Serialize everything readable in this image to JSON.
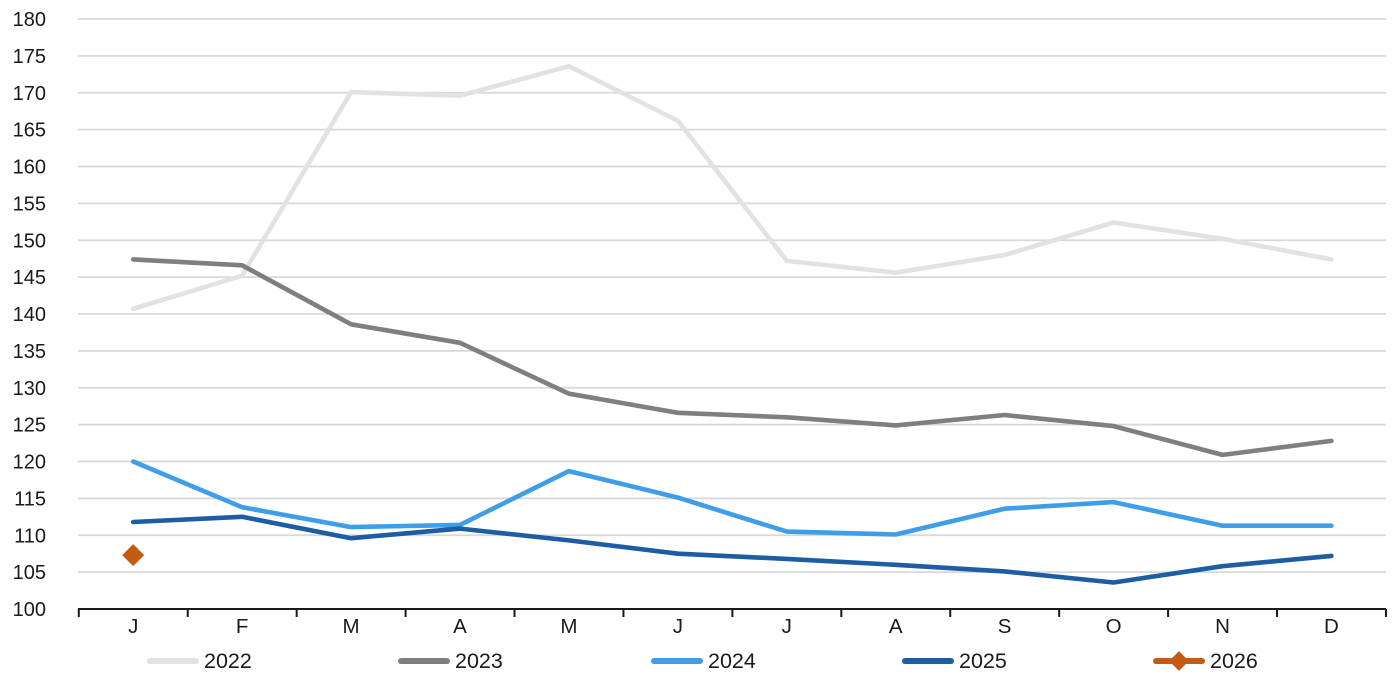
{
  "chart_data": {
    "type": "line",
    "title": "",
    "xlabel": "",
    "ylabel": "",
    "categories": [
      "J",
      "F",
      "M",
      "A",
      "M",
      "J",
      "J",
      "A",
      "S",
      "O",
      "N",
      "D"
    ],
    "ylim": [
      100,
      180
    ],
    "ytick_step": 5,
    "ytick_labels": [
      "100",
      "105",
      "110",
      "115",
      "120",
      "125",
      "130",
      "135",
      "140",
      "145",
      "150",
      "155",
      "160",
      "165",
      "170",
      "175",
      "180"
    ],
    "grid": "horizontal",
    "legend_position": "bottom",
    "background_color": "#ffffff",
    "gridline_color": "#d8d8d8",
    "axis_color": "#1a1a1a",
    "text_color": "#1a1a1a",
    "series": [
      {
        "name": "2022",
        "color": "#e2e2e2",
        "marker": "none",
        "values": [
          140.7,
          145.2,
          170.1,
          169.6,
          173.6,
          166.2,
          147.2,
          145.6,
          148.0,
          152.4,
          150.2,
          147.4
        ]
      },
      {
        "name": "2023",
        "color": "#7f7f7f",
        "marker": "none",
        "values": [
          147.4,
          146.6,
          138.6,
          136.1,
          129.2,
          126.6,
          126.0,
          124.9,
          126.3,
          124.8,
          120.9,
          122.8
        ]
      },
      {
        "name": "2024",
        "color": "#3f9ee8",
        "marker": "none",
        "values": [
          120.0,
          113.8,
          111.1,
          111.4,
          118.7,
          115.1,
          110.5,
          110.1,
          113.6,
          114.5,
          111.3,
          111.3
        ]
      },
      {
        "name": "2025",
        "color": "#1d5da3",
        "marker": "none",
        "values": [
          111.8,
          112.5,
          109.6,
          110.9,
          109.3,
          107.5,
          106.8,
          106.0,
          105.1,
          103.6,
          105.8,
          107.2
        ]
      },
      {
        "name": "2026",
        "color": "#c55a11",
        "marker": "diamond",
        "values": [
          107.3,
          null,
          null,
          null,
          null,
          null,
          null,
          null,
          null,
          null,
          null,
          null
        ]
      }
    ]
  }
}
